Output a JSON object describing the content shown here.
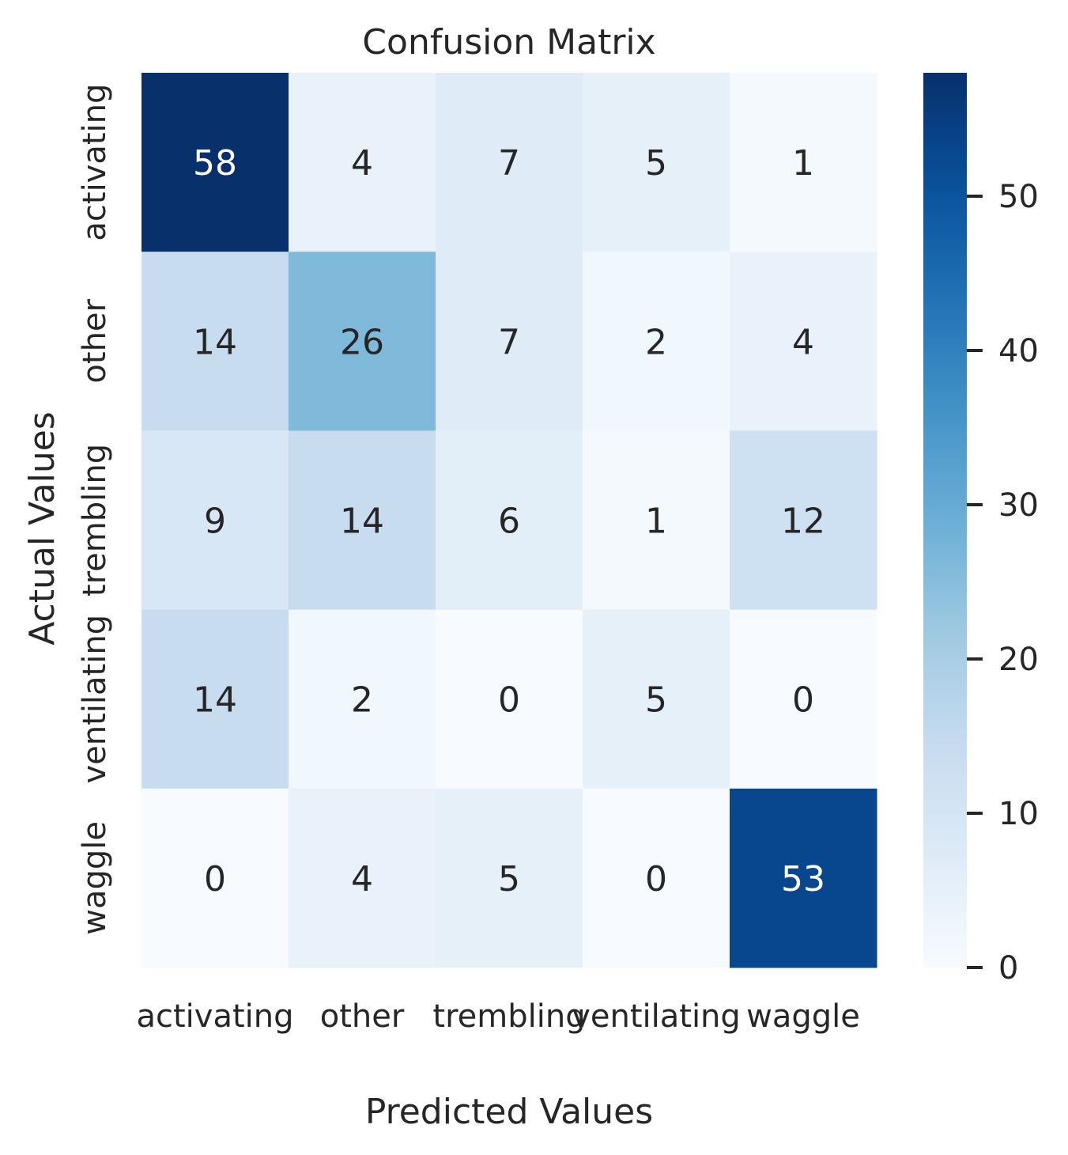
{
  "chart_data": {
    "type": "heatmap",
    "title": "Confusion Matrix",
    "xlabel": "Predicted Values",
    "ylabel": "Actual Values",
    "x_categories": [
      "activating",
      "other",
      "trembling",
      "ventilating",
      "waggle"
    ],
    "y_categories": [
      "activating",
      "other",
      "trembling",
      "ventilating",
      "waggle"
    ],
    "values": [
      [
        58,
        4,
        7,
        5,
        1
      ],
      [
        14,
        26,
        7,
        2,
        4
      ],
      [
        9,
        14,
        6,
        1,
        12
      ],
      [
        14,
        2,
        0,
        5,
        0
      ],
      [
        0,
        4,
        5,
        0,
        53
      ]
    ],
    "colormap": "Blues",
    "colorbar": {
      "min": 0,
      "max": 58,
      "ticks": [
        0,
        10,
        20,
        30,
        40,
        50
      ]
    },
    "grid": false,
    "colors": {
      "low": "#f7fbff",
      "high": "#08306b",
      "text_dark": "#262626",
      "text_light": "#ffffff"
    }
  }
}
